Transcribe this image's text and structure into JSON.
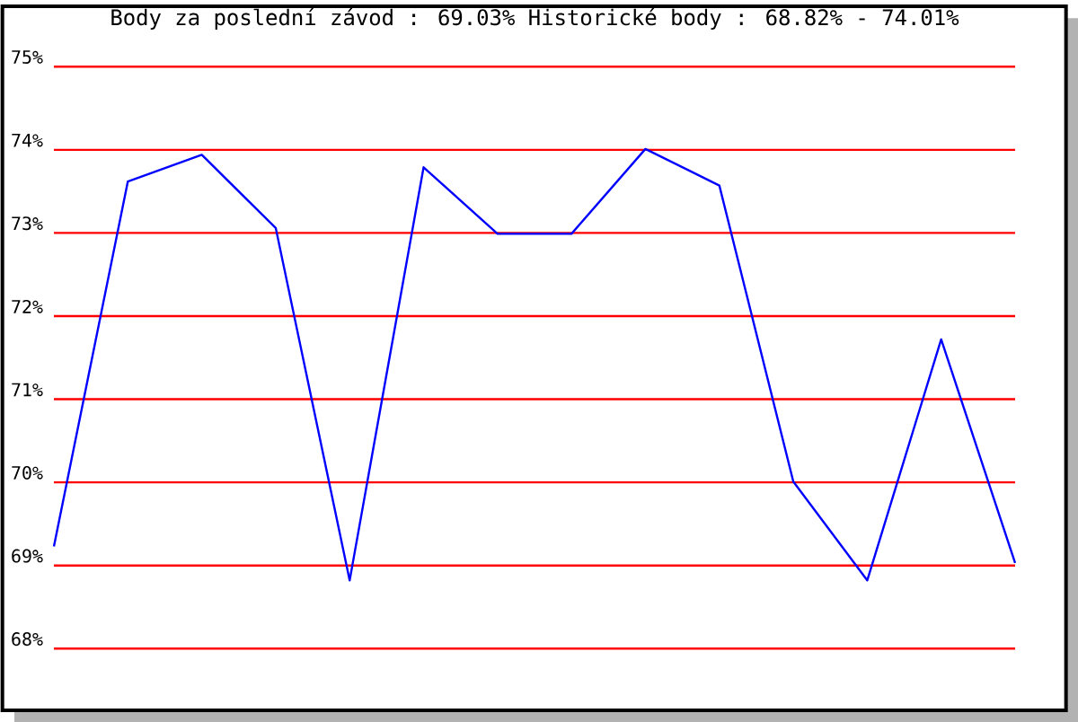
{
  "chart_data": {
    "type": "line",
    "title": "Body za poslední závod : 69.03%  Historické body : 68.82% - 74.01%",
    "categories": [
      null,
      null,
      null,
      null,
      null,
      null,
      null,
      null,
      null,
      null,
      null,
      null,
      null,
      null
    ],
    "series": [
      {
        "color": "#0000ff",
        "values": [
          69.23,
          73.62,
          73.94,
          73.06,
          68.82,
          73.79,
          72.99,
          72.99,
          74.01,
          73.57,
          70.01,
          68.82,
          71.72,
          69.03
        ]
      }
    ],
    "ylim": [
      68,
      75
    ],
    "yticks": [
      {
        "value": 68,
        "label": "68%"
      },
      {
        "value": 69,
        "label": "69%"
      },
      {
        "value": 70,
        "label": "70%"
      },
      {
        "value": 71,
        "label": "71%"
      },
      {
        "value": 72,
        "label": "72%"
      },
      {
        "value": 73,
        "label": "73%"
      },
      {
        "value": 74,
        "label": "74%"
      },
      {
        "value": 75,
        "label": "75%"
      }
    ],
    "grid": "y",
    "marker": "none"
  }
}
